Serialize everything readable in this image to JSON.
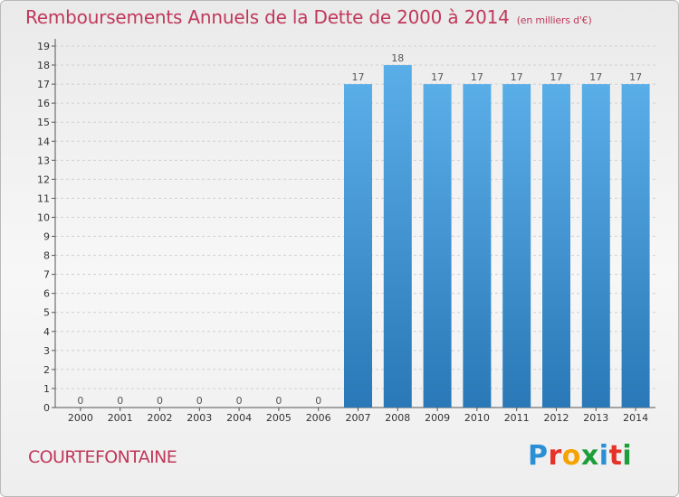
{
  "title": "Remboursements Annuels de la Dette de 2000 à 2014",
  "unit": "(en milliers d'€)",
  "commune": "COURTEFONTAINE",
  "logo": {
    "text": "Proxiti",
    "letters": [
      {
        "ch": "P",
        "color": "#2b8fd6"
      },
      {
        "ch": "r",
        "color": "#e5332a"
      },
      {
        "ch": "o",
        "color": "#f4a300"
      },
      {
        "ch": "x",
        "color": "#1e9e3a"
      },
      {
        "ch": "i",
        "color": "#2b8fd6"
      },
      {
        "ch": "t",
        "color": "#e5332a"
      },
      {
        "ch": "i",
        "color": "#1e9e3a"
      }
    ]
  },
  "colors": {
    "bar_top": "#5aaee8",
    "bar_bottom": "#2a78b7",
    "title": "#c0385b",
    "grid": "#d0d0d0"
  },
  "chart_data": {
    "type": "bar",
    "categories": [
      "2000",
      "2001",
      "2002",
      "2003",
      "2004",
      "2005",
      "2006",
      "2007",
      "2008",
      "2009",
      "2010",
      "2011",
      "2012",
      "2013",
      "2014"
    ],
    "values": [
      0,
      0,
      0,
      0,
      0,
      0,
      0,
      17,
      18,
      17,
      17,
      17,
      17,
      17,
      17
    ],
    "data_labels": [
      "0",
      "0",
      "0",
      "0",
      "0",
      "0",
      "0",
      "17",
      "18",
      "17",
      "17",
      "17",
      "17",
      "17",
      "17"
    ],
    "ylim": [
      0,
      19
    ],
    "yticks": [
      0,
      1,
      2,
      3,
      4,
      5,
      6,
      7,
      8,
      9,
      10,
      11,
      12,
      13,
      14,
      15,
      16,
      17,
      18,
      19
    ],
    "grid": true,
    "legend": false
  }
}
